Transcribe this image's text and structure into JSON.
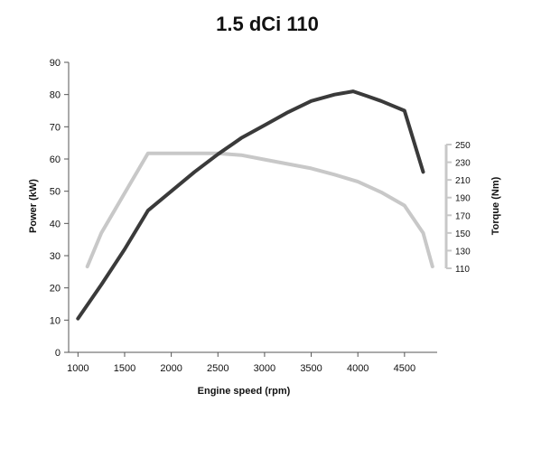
{
  "chart_data": {
    "type": "line",
    "title": "1.5 dCi 110",
    "xlabel": "Engine speed (rpm)",
    "ylabel": "Power (kW)",
    "y2label": "Torque (Nm)",
    "xlim": [
      900,
      4850
    ],
    "ylim": [
      0,
      90
    ],
    "y2lim": [
      110,
      250
    ],
    "x_ticks": [
      1000,
      1500,
      2000,
      2500,
      3000,
      3500,
      4000,
      4500
    ],
    "y_ticks": [
      0,
      10,
      20,
      30,
      40,
      50,
      60,
      70,
      80,
      90
    ],
    "y2_ticks": [
      110,
      130,
      150,
      170,
      190,
      210,
      230,
      250
    ],
    "grid": false,
    "colors": {
      "power": "#3a3a3a",
      "torque": "#c8c8c8",
      "axis": "#555555",
      "right_axis": "#c8c8c8"
    },
    "series": [
      {
        "key": "power",
        "axis": "left",
        "x": [
          1000,
          1250,
          1500,
          1750,
          2000,
          2250,
          2500,
          2750,
          3000,
          3250,
          3500,
          3750,
          3950,
          4100,
          4250,
          4500,
          4700
        ],
        "values": [
          10.5,
          21,
          32,
          44,
          50,
          56,
          61.5,
          66.5,
          70.5,
          74.5,
          78,
          80,
          81,
          79.5,
          78,
          75,
          56
        ]
      },
      {
        "key": "torque",
        "axis": "right",
        "x": [
          1100,
          1250,
          1500,
          1750,
          2000,
          2250,
          2500,
          2750,
          3000,
          3250,
          3500,
          3750,
          4000,
          4250,
          4500,
          4700,
          4800
        ],
        "values": [
          112,
          150,
          195,
          240,
          240,
          240,
          240,
          238,
          233,
          228,
          223,
          216,
          208,
          196,
          181,
          150,
          112
        ]
      }
    ]
  }
}
